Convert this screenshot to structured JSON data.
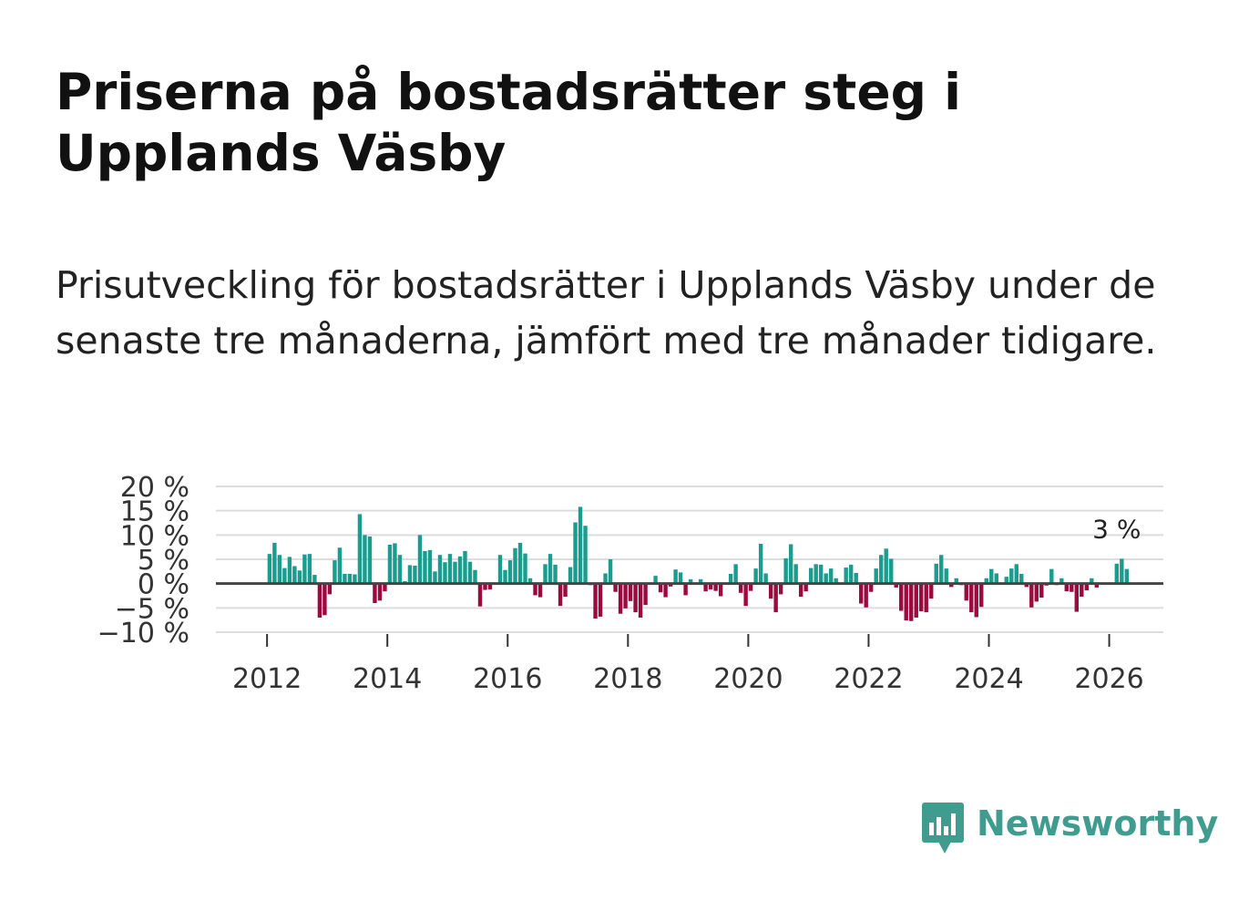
{
  "title": "Priserna på bostadsrätter steg i Upplands Väsby",
  "subtitle": "Prisutveckling för bostadsrätter i Upplands Väsby under de senaste tre månaderna, jämfört med tre månader tidigare.",
  "brand": {
    "name": "Newsworthy",
    "icon": "newsworthy-logo-icon",
    "color": "#3f9c8e"
  },
  "chart_data": {
    "type": "bar",
    "title": "",
    "xlabel": "",
    "ylabel": "",
    "ylim": [
      -10,
      20
    ],
    "xlim": [
      2011.15,
      2026.9
    ],
    "y_ticks": [
      -10,
      -5,
      0,
      5,
      10,
      15,
      20
    ],
    "y_tick_labels": [
      "−10 %",
      "−5 %",
      "0 %",
      "5 %",
      "10 %",
      "15 %",
      "20 %"
    ],
    "x_ticks": [
      2012,
      2014,
      2016,
      2018,
      2020,
      2022,
      2024,
      2026
    ],
    "x_tick_labels": [
      "2012",
      "2014",
      "2016",
      "2018",
      "2020",
      "2022",
      "2024",
      "2026"
    ],
    "positive_color": "#1a9c8e",
    "negative_color": "#9b0a3d",
    "grid": true,
    "start": "2012-01",
    "annotation": {
      "label": "3 %",
      "x": "2026-02",
      "value": 3
    },
    "series": [
      {
        "name": "Prisutveckling",
        "values": [
          6.1,
          8.4,
          5.9,
          3.2,
          5.5,
          3.6,
          2.7,
          6.0,
          6.1,
          1.8,
          -7.0,
          -6.5,
          -2.2,
          4.8,
          7.4,
          2.0,
          2.0,
          1.9,
          14.3,
          10.0,
          9.7,
          -4.0,
          -3.5,
          -1.6,
          8.0,
          8.3,
          5.9,
          0.5,
          3.8,
          3.7,
          10.0,
          6.7,
          6.9,
          2.5,
          5.9,
          4.4,
          6.1,
          4.5,
          5.6,
          6.7,
          4.5,
          2.8,
          -4.7,
          -1.3,
          -1.2,
          0.2,
          5.9,
          2.8,
          4.8,
          7.3,
          8.4,
          6.2,
          1.1,
          -2.4,
          -2.8,
          4.0,
          6.1,
          3.9,
          -4.6,
          -2.7,
          3.4,
          12.6,
          15.8,
          11.9,
          -0.3,
          -7.2,
          -6.8,
          2.1,
          5.0,
          -1.7,
          -6.2,
          -5.1,
          -3.6,
          -5.9,
          -7.0,
          -4.4,
          0.0,
          1.6,
          -1.8,
          -2.8,
          -0.6,
          2.9,
          2.3,
          -2.4,
          0.9,
          0.1,
          0.9,
          -1.6,
          -1.2,
          -1.5,
          -2.6,
          0.1,
          2.0,
          4.0,
          -1.9,
          -4.6,
          -1.5,
          3.1,
          8.2,
          2.1,
          -3.1,
          -5.9,
          -2.2,
          5.2,
          8.1,
          4.0,
          -2.7,
          -1.6,
          3.2,
          4.0,
          3.9,
          2.1,
          3.1,
          1.1,
          0.1,
          3.3,
          3.9,
          2.2,
          -4.1,
          -4.9,
          -1.7,
          3.1,
          5.9,
          7.2,
          5.1,
          -0.8,
          -5.6,
          -7.6,
          -7.7,
          -7.0,
          -5.7,
          -5.9,
          -3.1,
          4.1,
          5.9,
          3.1,
          -0.7,
          1.1,
          -0.3,
          -3.5,
          -5.9,
          -6.9,
          -4.8,
          1.1,
          3.0,
          2.1,
          -0.2,
          1.4,
          3.1,
          4.0,
          2.0,
          -0.7,
          -4.9,
          -3.7,
          -2.9,
          -0.4,
          3.0,
          -0.3,
          1.1,
          -1.6,
          -1.7,
          -5.8,
          -2.7,
          -1.4,
          1.1,
          -0.8,
          0.0,
          0.0,
          0.0,
          4.1,
          5.1,
          3.0
        ]
      }
    ]
  }
}
